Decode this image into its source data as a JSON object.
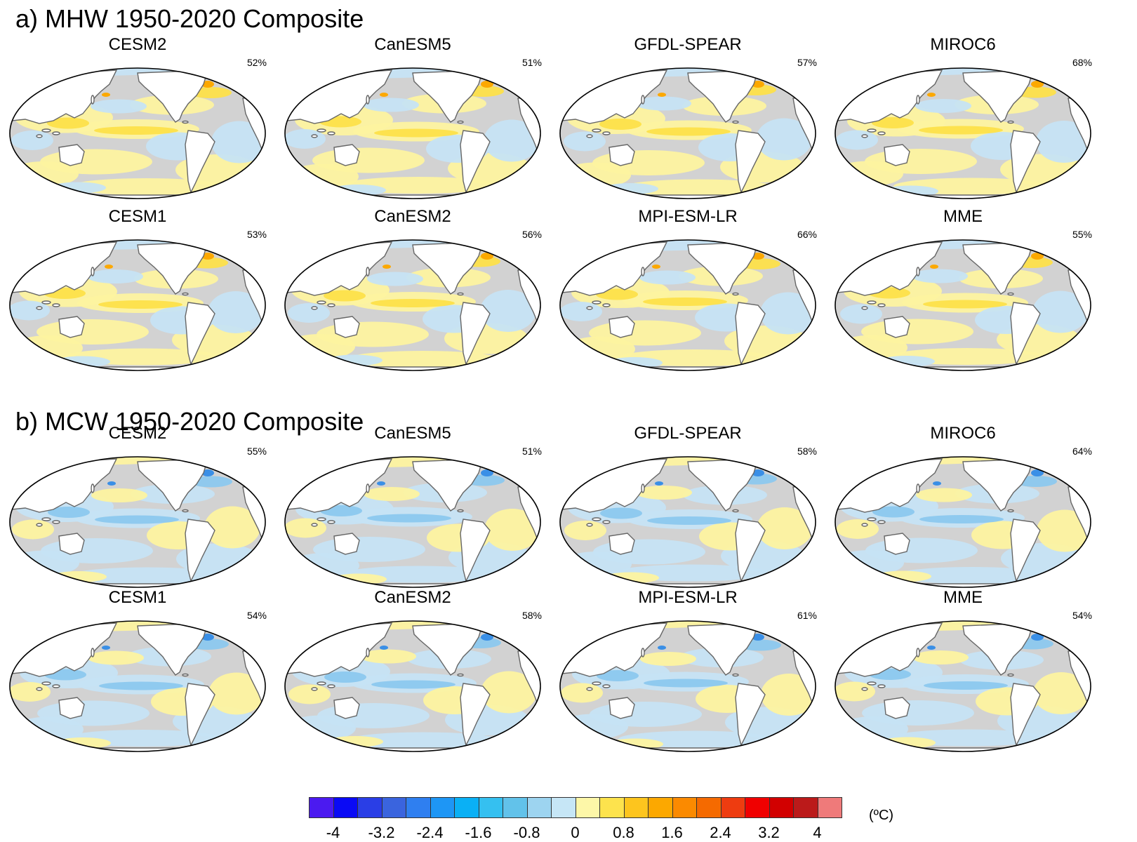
{
  "sections": [
    {
      "title": "a) MHW 1950-2020 Composite",
      "panels": [
        {
          "name": "CESM2",
          "pct": "52%",
          "pattern": "warm"
        },
        {
          "name": "CanESM5",
          "pct": "51%",
          "pattern": "warm"
        },
        {
          "name": "GFDL-SPEAR",
          "pct": "57%",
          "pattern": "warm"
        },
        {
          "name": "MIROC6",
          "pct": "68%",
          "pattern": "warm"
        },
        {
          "name": "CESM1",
          "pct": "53%",
          "pattern": "warm"
        },
        {
          "name": "CanESM2",
          "pct": "56%",
          "pattern": "warm"
        },
        {
          "name": "MPI-ESM-LR",
          "pct": "66%",
          "pattern": "warm"
        },
        {
          "name": "MME",
          "pct": "55%",
          "pattern": "warm"
        }
      ]
    },
    {
      "title": "b) MCW 1950-2020 Composite",
      "panels": [
        {
          "name": "CESM2",
          "pct": "55%",
          "pattern": "cool"
        },
        {
          "name": "CanESM5",
          "pct": "51%",
          "pattern": "cool"
        },
        {
          "name": "GFDL-SPEAR",
          "pct": "58%",
          "pattern": "cool"
        },
        {
          "name": "MIROC6",
          "pct": "64%",
          "pattern": "cool"
        },
        {
          "name": "CESM1",
          "pct": "54%",
          "pattern": "cool"
        },
        {
          "name": "CanESM2",
          "pct": "58%",
          "pattern": "cool"
        },
        {
          "name": "MPI-ESM-LR",
          "pct": "61%",
          "pattern": "cool"
        },
        {
          "name": "MME",
          "pct": "54%",
          "pattern": "cool"
        }
      ]
    }
  ],
  "colorbar": {
    "colors": [
      "#4b1af0",
      "#0a0af5",
      "#2a3ee6",
      "#3a64de",
      "#2f7ff0",
      "#1e96f5",
      "#0ab0f5",
      "#35c0f0",
      "#62c2ea",
      "#9dd4f0",
      "#c6e6f6",
      "#fdf7a8",
      "#fde34d",
      "#fdc51e",
      "#fca800",
      "#fb8a00",
      "#f56a00",
      "#ee3c10",
      "#f00000",
      "#d20000",
      "#bb1a1a",
      "#ef7a7a"
    ],
    "labels": [
      "-4",
      "-3.2",
      "-2.4",
      "-1.6",
      "-0.8",
      "0",
      "0.8",
      "1.6",
      "2.4",
      "3.2",
      "4"
    ],
    "unit": "(ºC)"
  }
}
